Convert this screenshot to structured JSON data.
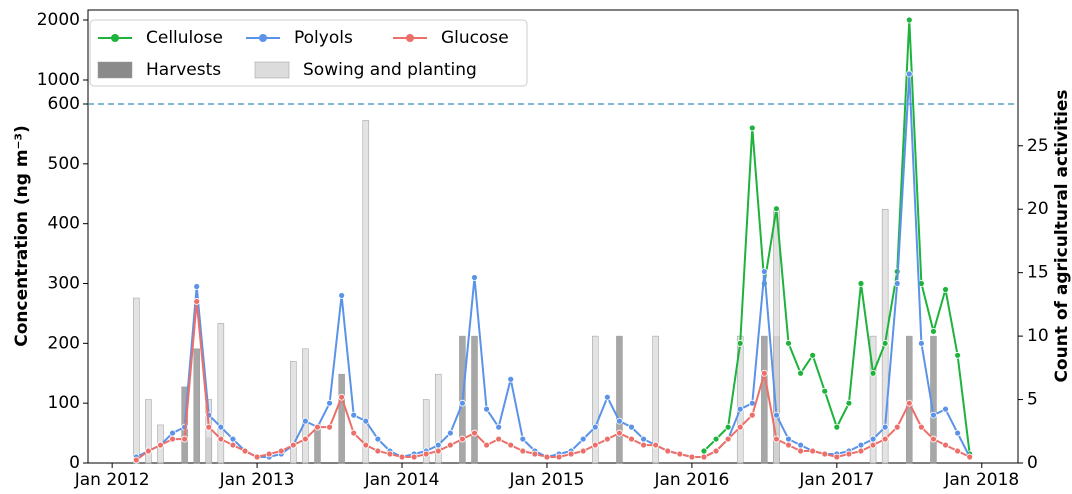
{
  "chart_data": {
    "type": "line",
    "y_label": "Concentration (ng m⁻³)",
    "y2_label": "Count of agricultural activities",
    "xlim": [
      "2011-11",
      "2018-04"
    ],
    "xticks": [
      {
        "value": "2012-01",
        "label": "Jan 2012"
      },
      {
        "value": "2013-01",
        "label": "Jan 2013"
      },
      {
        "value": "2014-01",
        "label": "Jan 2014"
      },
      {
        "value": "2015-01",
        "label": "Jan 2015"
      },
      {
        "value": "2016-01",
        "label": "Jan 2016"
      },
      {
        "value": "2017-01",
        "label": "Jan 2017"
      },
      {
        "value": "2018-01",
        "label": "Jan 2018"
      }
    ],
    "ylim": [
      0,
      2000
    ],
    "yticks": [
      0,
      100,
      200,
      300,
      400,
      500,
      600,
      1000,
      2000
    ],
    "reference_line": 600,
    "y2lim": [
      0,
      35.7
    ],
    "y2ticks": [
      0,
      5,
      10,
      15,
      20,
      25
    ],
    "legend": "upper left",
    "x": [
      "2012-03",
      "2012-04",
      "2012-05",
      "2012-06",
      "2012-07",
      "2012-08",
      "2012-09",
      "2012-10",
      "2012-11",
      "2012-12",
      "2013-01",
      "2013-02",
      "2013-03",
      "2013-04",
      "2013-05",
      "2013-06",
      "2013-07",
      "2013-08",
      "2013-09",
      "2013-10",
      "2013-11",
      "2013-12",
      "2014-01",
      "2014-02",
      "2014-03",
      "2014-04",
      "2014-05",
      "2014-06",
      "2014-07",
      "2014-08",
      "2014-09",
      "2014-10",
      "2014-11",
      "2014-12",
      "2015-01",
      "2015-02",
      "2015-03",
      "2015-04",
      "2015-05",
      "2015-06",
      "2015-07",
      "2015-08",
      "2015-09",
      "2015-10",
      "2015-11",
      "2015-12",
      "2016-01",
      "2016-02",
      "2016-03",
      "2016-04",
      "2016-05",
      "2016-06",
      "2016-07",
      "2016-08",
      "2016-09",
      "2016-10",
      "2016-11",
      "2016-12",
      "2017-01",
      "2017-02",
      "2017-03",
      "2017-04",
      "2017-05",
      "2017-06",
      "2017-07",
      "2017-08",
      "2017-09",
      "2017-10",
      "2017-11",
      "2017-12"
    ],
    "series": [
      {
        "name": "Cellulose",
        "color": "#1db33c",
        "values": [
          null,
          null,
          null,
          null,
          null,
          null,
          null,
          null,
          null,
          null,
          null,
          null,
          null,
          null,
          null,
          null,
          null,
          null,
          null,
          null,
          null,
          null,
          null,
          null,
          null,
          null,
          null,
          null,
          null,
          null,
          null,
          null,
          null,
          null,
          null,
          null,
          null,
          null,
          null,
          null,
          null,
          null,
          null,
          null,
          null,
          null,
          null,
          20,
          40,
          60,
          200,
          560,
          300,
          425,
          200,
          150,
          180,
          120,
          60,
          100,
          300,
          150,
          200,
          320,
          2000,
          300,
          220,
          290,
          180,
          15
        ]
      },
      {
        "name": "Polyols",
        "color": "#5b93e8",
        "values": [
          10,
          20,
          30,
          50,
          60,
          295,
          80,
          60,
          40,
          20,
          10,
          10,
          15,
          30,
          70,
          60,
          100,
          280,
          80,
          70,
          40,
          20,
          10,
          15,
          20,
          30,
          50,
          100,
          310,
          90,
          60,
          140,
          40,
          20,
          10,
          15,
          20,
          40,
          60,
          110,
          70,
          60,
          40,
          30,
          20,
          15,
          10,
          10,
          20,
          40,
          90,
          100,
          320,
          80,
          40,
          30,
          20,
          15,
          15,
          20,
          30,
          40,
          60,
          300,
          1100,
          200,
          80,
          90,
          50,
          10
        ]
      },
      {
        "name": "Glucose",
        "color": "#ec6f6a",
        "values": [
          5,
          20,
          30,
          40,
          40,
          270,
          60,
          40,
          30,
          20,
          10,
          15,
          20,
          30,
          40,
          60,
          60,
          110,
          50,
          30,
          20,
          15,
          10,
          10,
          15,
          20,
          30,
          40,
          50,
          30,
          40,
          30,
          20,
          15,
          10,
          10,
          15,
          20,
          30,
          40,
          50,
          40,
          30,
          30,
          20,
          15,
          10,
          10,
          20,
          40,
          60,
          80,
          150,
          40,
          30,
          20,
          20,
          15,
          10,
          15,
          20,
          30,
          40,
          60,
          100,
          60,
          40,
          30,
          20,
          10
        ]
      },
      {
        "name": "Harvests",
        "kind": "bar",
        "axis": "y2",
        "color": "#8a8a8a",
        "x": [
          "2012-07",
          "2012-08",
          "2012-09",
          "2013-06",
          "2013-08",
          "2014-06",
          "2014-07",
          "2015-07",
          "2016-07",
          "2016-08",
          "2017-07",
          "2017-09"
        ],
        "values": [
          6,
          9,
          2,
          3,
          7,
          10,
          10,
          10,
          10,
          10,
          10,
          10
        ]
      },
      {
        "name": "Sowing and planting",
        "kind": "bar",
        "axis": "y2",
        "color": "#dcdcdc",
        "x": [
          "2012-03",
          "2012-04",
          "2012-05",
          "2012-09",
          "2012-10",
          "2013-04",
          "2013-05",
          "2013-10",
          "2014-03",
          "2014-04",
          "2015-05",
          "2015-10",
          "2016-05",
          "2016-08",
          "2017-04",
          "2017-05"
        ],
        "values": [
          13,
          5,
          3,
          5,
          11,
          8,
          9,
          27,
          5,
          7,
          10,
          10,
          10,
          20,
          10,
          20
        ]
      }
    ]
  }
}
